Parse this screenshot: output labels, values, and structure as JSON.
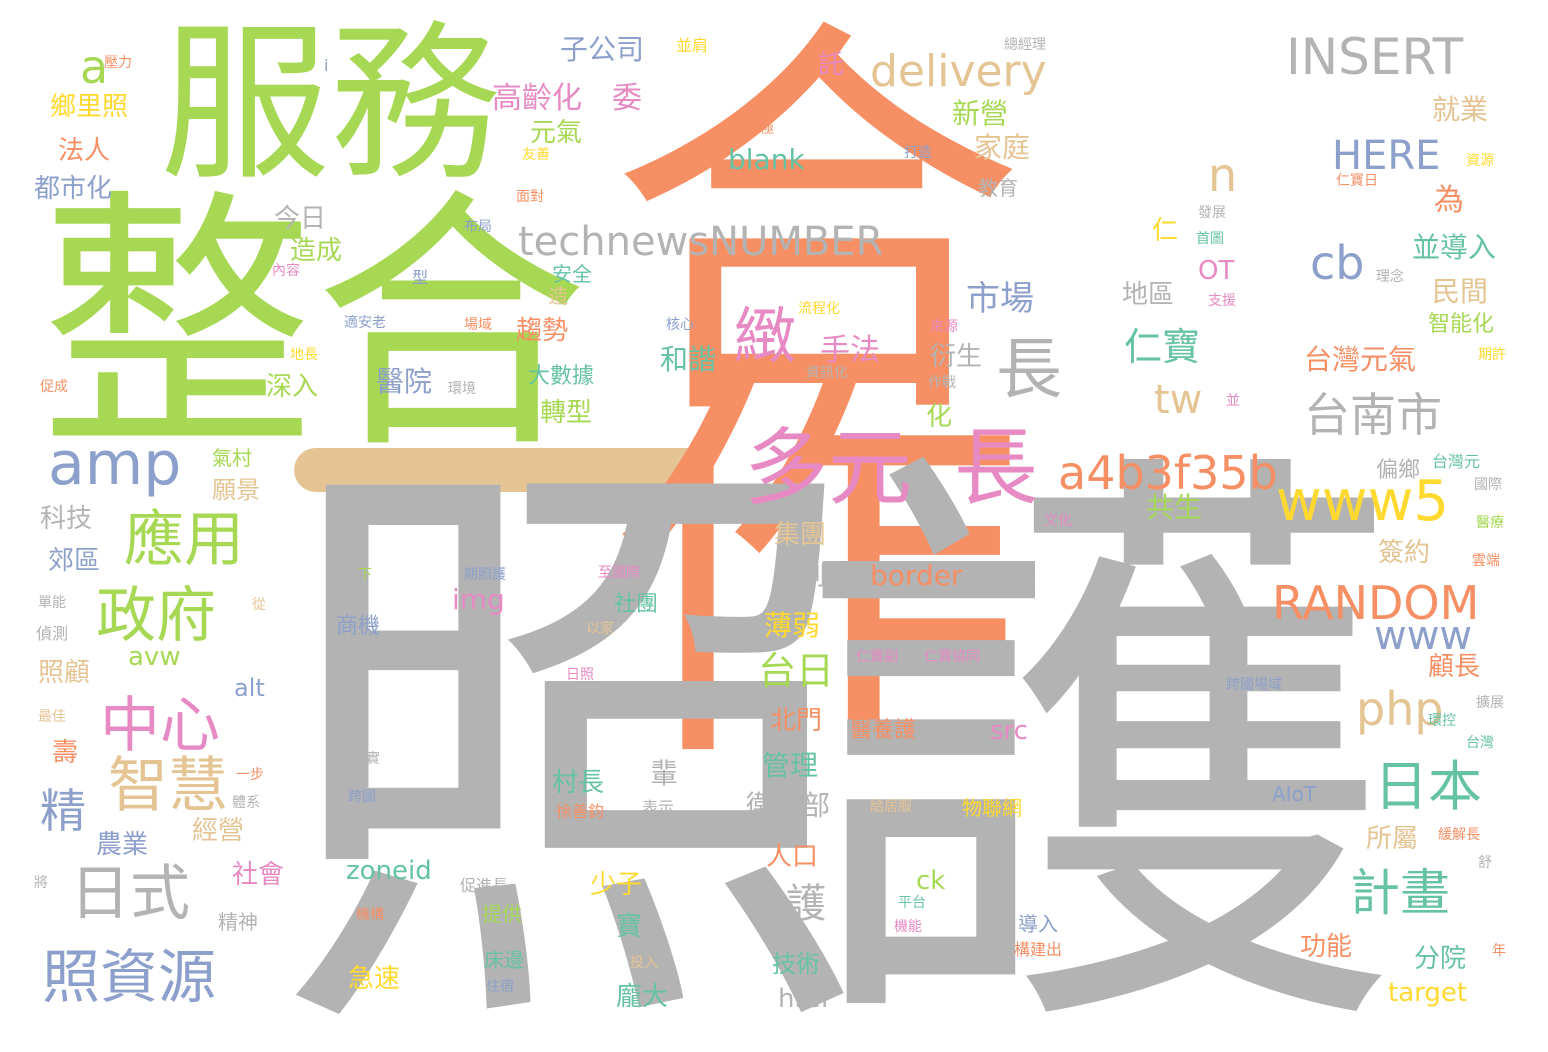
{
  "palette": {
    "orange": "#f78f64",
    "green": "#a6d854",
    "gray": "#b3b3b3",
    "blue": "#8da0cb",
    "pink": "#e78ac3",
    "teal": "#66c2a5",
    "yellow": "#ffd92f",
    "tan": "#e5c494"
  },
  "words": [
    "合作",
    "照護",
    "整合",
    "服務",
    "多元",
    "長",
    "長",
    "amp",
    "中心",
    "政府",
    "應用",
    "智慧",
    "日式",
    "照資源",
    "technewsNUMBER",
    "INSERT",
    "delivery",
    "台南市",
    "a4b3f35b",
    "www5",
    "RANDOM",
    "www",
    "日本",
    "計畫",
    "php",
    "cb",
    "HERE",
    "tw",
    "市場",
    "仁寶",
    "緻",
    "精",
    "護",
    "a",
    "n",
    "子公司",
    "高齡化",
    "委",
    "元氣",
    "新營",
    "家庭",
    "blank",
    "就業",
    "並導入",
    "民間",
    "智能化",
    "台灣元氣",
    "為",
    "今日",
    "造成",
    "地區",
    "OT",
    "仁",
    "手法",
    "和諧",
    "醫院",
    "趨勢",
    "大數據",
    "轉型",
    "深入",
    "衍生",
    "化",
    "共生",
    "簽約",
    "偏鄉",
    "集團",
    "達到",
    "border",
    "img",
    "社團",
    "薄弱",
    "台日",
    "北門",
    "管理",
    "衛福部",
    "人口",
    "顧長",
    "所屬",
    "分院",
    "功能",
    "target",
    "avw",
    "alt",
    "src",
    "zoneid",
    "ck",
    "少子",
    "寶",
    "急速",
    "技術",
    "href",
    "龐大",
    "村長",
    "輩",
    "商機",
    "出",
    "鄉里照",
    "法人",
    "都市化",
    "科技",
    "郊區",
    "照顧",
    "壽",
    "經營",
    "社會",
    "農業",
    "願景",
    "氣村",
    "安全",
    "造",
    "AIoT",
    "壓力",
    "i",
    "並肩",
    "託",
    "總經理",
    "積極",
    "友善",
    "打造",
    "面對",
    "資源",
    "仁寶日",
    "教育",
    "發展",
    "首圖",
    "布局",
    "內容",
    "型",
    "理念",
    "支援",
    "適安老",
    "場域",
    "核心",
    "流程化",
    "資訊化",
    "來源",
    "作戰",
    "期許",
    "地長",
    "促成",
    "環境",
    "並",
    "台灣元",
    "國際",
    "文化",
    "醫療",
    "雲端",
    "下",
    "期照護",
    "至國際",
    "從",
    "以家",
    "單能",
    "偵測",
    "仁寶副",
    "仁寶協同",
    "日照",
    "跨國場域",
    "擴展",
    "最佳",
    "醫養護",
    "環控",
    "台灣",
    "一步",
    "落實",
    "體系",
    "跨國",
    "表示",
    "徐善鈞",
    "給居服",
    "物聯網",
    "緩解長",
    "舒",
    "將",
    "促進長",
    "提供",
    "機構",
    "挑戰",
    "精神",
    "平台",
    "機能",
    "健康",
    "導入",
    "構建出",
    "年",
    "投入",
    "床邊",
    "住宿"
  ]
}
